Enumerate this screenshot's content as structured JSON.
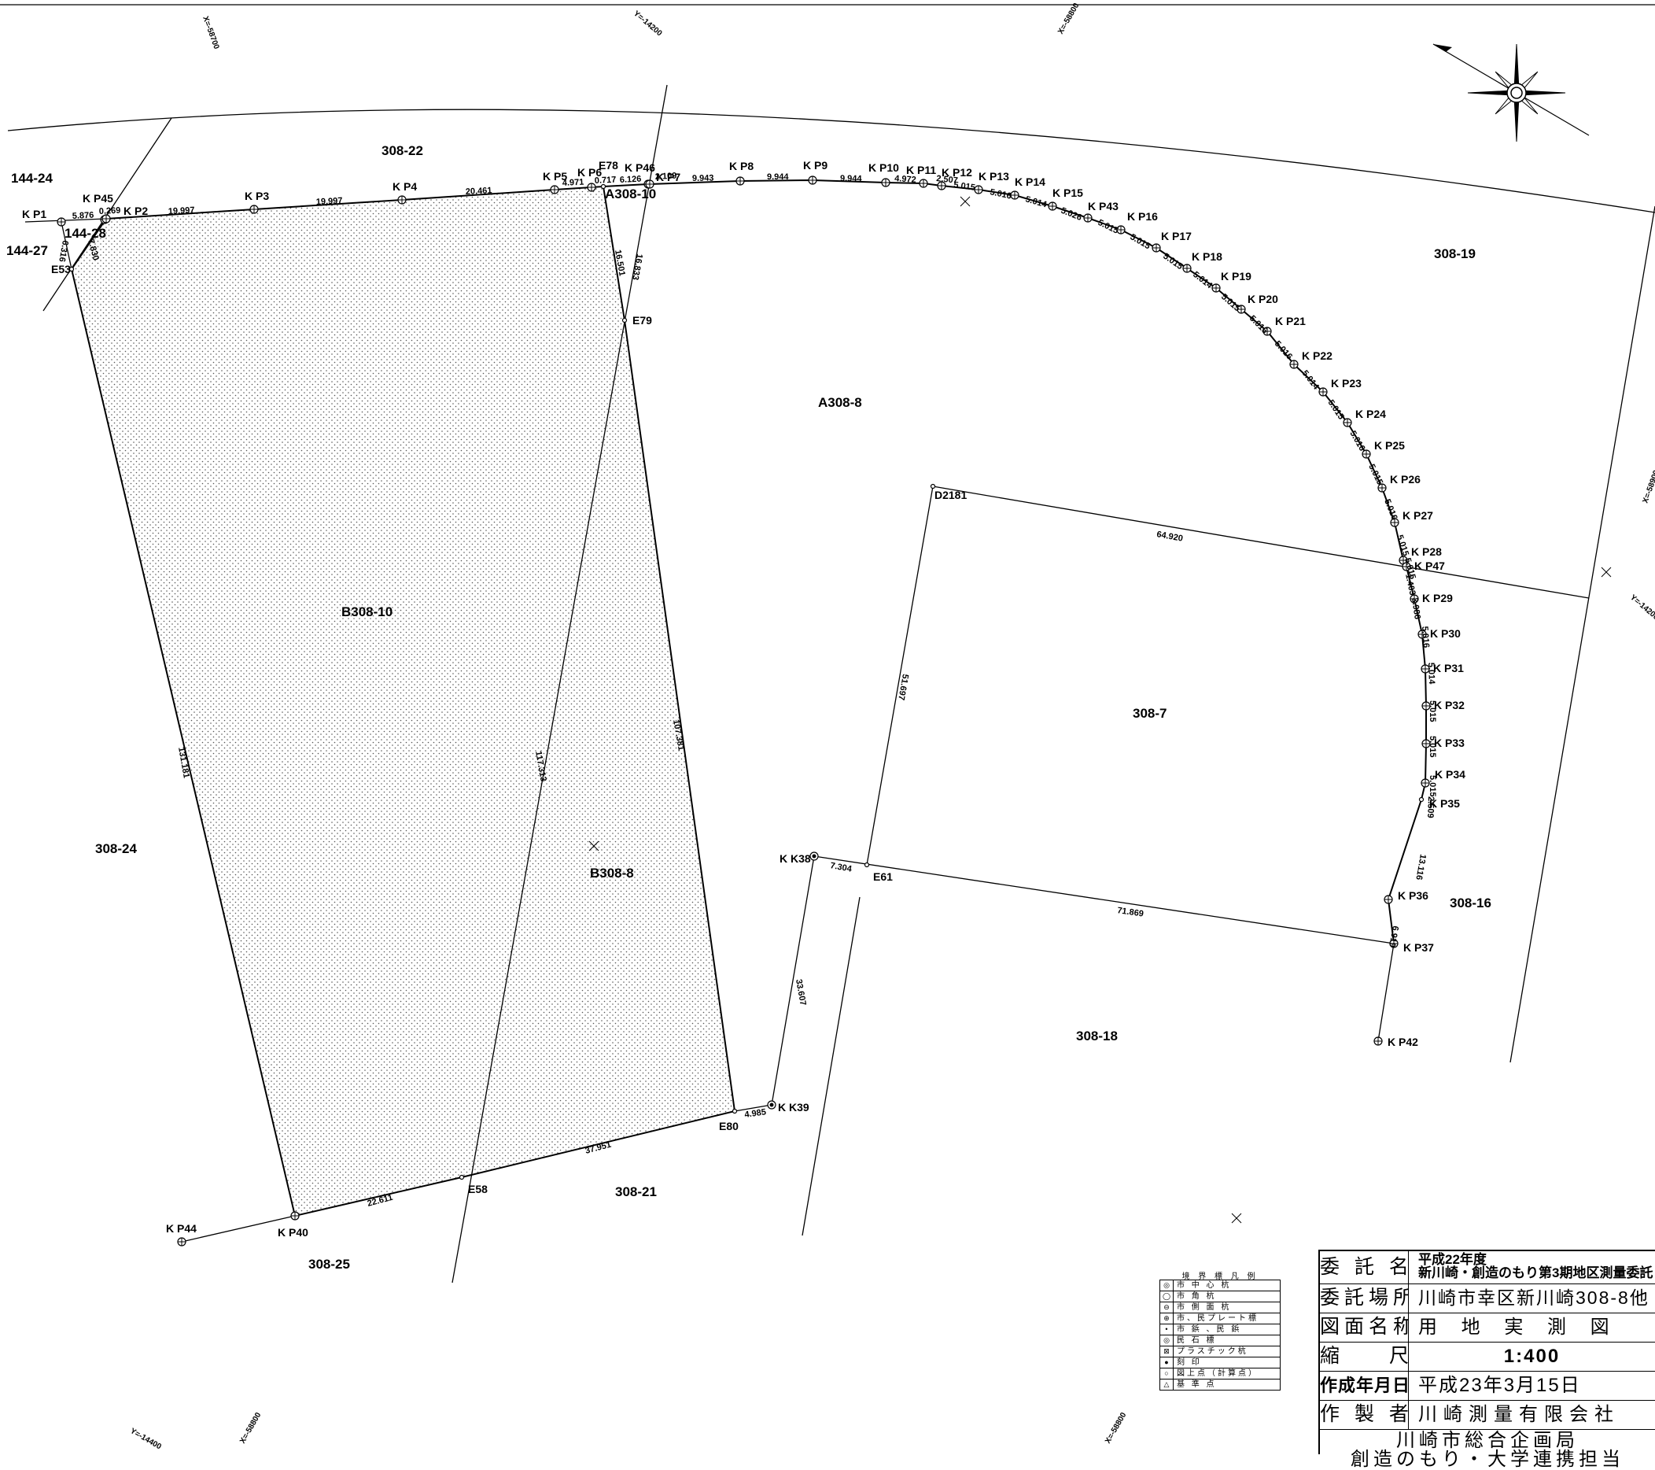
{
  "parcels": [
    {
      "id": "308-22",
      "label": "308-22"
    },
    {
      "id": "144-24",
      "label": "144-24"
    },
    {
      "id": "144-27",
      "label": "144-27"
    },
    {
      "id": "144-28",
      "label": "144-28"
    },
    {
      "id": "A308-10",
      "label": "A308-10"
    },
    {
      "id": "A308-8",
      "label": "A308-8"
    },
    {
      "id": "308-19",
      "label": "308-19"
    },
    {
      "id": "B308-10",
      "label": "B308-10"
    },
    {
      "id": "308-24",
      "label": "308-24"
    },
    {
      "id": "B308-8",
      "label": "B308-8"
    },
    {
      "id": "308-7",
      "label": "308-7"
    },
    {
      "id": "308-16",
      "label": "308-16"
    },
    {
      "id": "308-18",
      "label": "308-18"
    },
    {
      "id": "308-21",
      "label": "308-21"
    },
    {
      "id": "308-25",
      "label": "308-25"
    }
  ],
  "points": [
    {
      "id": "KP1",
      "label": "K P1",
      "marker": "cross"
    },
    {
      "id": "KP45",
      "label": "K P45",
      "marker": "cross"
    },
    {
      "id": "KP2",
      "label": "K P2",
      "marker": "cross"
    },
    {
      "id": "KP3",
      "label": "K P3",
      "marker": "cross"
    },
    {
      "id": "KP4",
      "label": "K P4",
      "marker": "cross"
    },
    {
      "id": "KP5",
      "label": "K P5",
      "marker": "cross"
    },
    {
      "id": "KP6",
      "label": "K P6",
      "marker": "cross"
    },
    {
      "id": "E78",
      "label": "E78",
      "marker": "dot"
    },
    {
      "id": "KP46",
      "label": "K P46",
      "marker": "cross"
    },
    {
      "id": "KP7",
      "label": "K P7",
      "marker": "cross"
    },
    {
      "id": "KP8",
      "label": "K P8",
      "marker": "cross"
    },
    {
      "id": "KP9",
      "label": "K P9",
      "marker": "cross"
    },
    {
      "id": "KP10",
      "label": "K P10",
      "marker": "cross"
    },
    {
      "id": "KP11",
      "label": "K P11",
      "marker": "cross"
    },
    {
      "id": "KP12",
      "label": "K P12",
      "marker": "cross"
    },
    {
      "id": "KP13",
      "label": "K P13",
      "marker": "cross"
    },
    {
      "id": "KP14",
      "label": "K P14",
      "marker": "cross"
    },
    {
      "id": "KP15",
      "label": "K P15",
      "marker": "cross"
    },
    {
      "id": "KP43",
      "label": "K P43",
      "marker": "cross"
    },
    {
      "id": "KP16",
      "label": "K P16",
      "marker": "cross"
    },
    {
      "id": "KP17",
      "label": "K P17",
      "marker": "cross"
    },
    {
      "id": "KP18",
      "label": "K P18",
      "marker": "cross"
    },
    {
      "id": "KP19",
      "label": "K P19",
      "marker": "cross"
    },
    {
      "id": "KP20",
      "label": "K P20",
      "marker": "cross"
    },
    {
      "id": "KP21",
      "label": "K P21",
      "marker": "cross"
    },
    {
      "id": "KP22",
      "label": "K P22",
      "marker": "cross"
    },
    {
      "id": "KP23",
      "label": "K P23",
      "marker": "cross"
    },
    {
      "id": "KP24",
      "label": "K P24",
      "marker": "cross"
    },
    {
      "id": "KP25",
      "label": "K P25",
      "marker": "cross"
    },
    {
      "id": "KP26",
      "label": "K P26",
      "marker": "cross"
    },
    {
      "id": "KP27",
      "label": "K P27",
      "marker": "cross"
    },
    {
      "id": "KP28",
      "label": "K P28",
      "marker": "cross"
    },
    {
      "id": "KP47",
      "label": "K P47",
      "marker": "cross"
    },
    {
      "id": "KP29",
      "label": "K P29",
      "marker": "cross"
    },
    {
      "id": "KP30",
      "label": "K P30",
      "marker": "cross"
    },
    {
      "id": "KP31",
      "label": "K P31",
      "marker": "cross"
    },
    {
      "id": "KP32",
      "label": "K P32",
      "marker": "cross"
    },
    {
      "id": "KP33",
      "label": "K P33",
      "marker": "cross"
    },
    {
      "id": "KP34",
      "label": "K P34",
      "marker": "cross"
    },
    {
      "id": "KP35",
      "label": "K P35",
      "marker": "dot"
    },
    {
      "id": "KP36",
      "label": "K P36",
      "marker": "cross"
    },
    {
      "id": "KP37",
      "label": "K P37",
      "marker": "cross"
    },
    {
      "id": "KP42",
      "label": "K P42",
      "marker": "cross"
    },
    {
      "id": "E53",
      "label": "E53",
      "marker": "dot"
    },
    {
      "id": "E79",
      "label": "E79",
      "marker": "dot"
    },
    {
      "id": "D2181",
      "label": "D2181",
      "marker": "dot"
    },
    {
      "id": "KK38",
      "label": "K K38",
      "marker": "double"
    },
    {
      "id": "E61",
      "label": "E61",
      "marker": "dot"
    },
    {
      "id": "E80",
      "label": "E80",
      "marker": "dot"
    },
    {
      "id": "KK39",
      "label": "K K39",
      "marker": "double"
    },
    {
      "id": "E58",
      "label": "E58",
      "marker": "dot"
    },
    {
      "id": "KP40",
      "label": "K P40",
      "marker": "cross"
    },
    {
      "id": "KP44",
      "label": "K P44",
      "marker": "cross"
    }
  ],
  "distances": [
    "5.876",
    "0.269",
    "19.997",
    "19.997",
    "20.461",
    "4.971",
    "0.717",
    "6.126",
    "2.109",
    "9.943",
    "9.944",
    "9.944",
    "4.972",
    "2.507",
    "5.015",
    "5.016",
    "5.014",
    "5.026",
    "5.015",
    "5.015",
    "5.015",
    "5.014",
    "5.015",
    "5.016",
    "5.016",
    "5.014",
    "5.015",
    "5.016",
    "5.015",
    "5.016",
    "5.015",
    "5.015",
    "1.403",
    "3.986",
    "5.016",
    "5.014",
    "5.015",
    "5.015",
    "5.015",
    "2.509",
    "13.116",
    "6.919",
    "6.316",
    "7.830",
    "16.501",
    "16.833",
    "64.920",
    "51.697",
    "7.304",
    "71.869",
    "107.381",
    "117.313",
    "131.181",
    "33.607",
    "4.985",
    "37.951",
    "22.611"
  ],
  "coordinate_ticks": [
    "X=-58700",
    "Y=-14200",
    "X=-58800",
    "X=-58900",
    "Y=-14200",
    "Y=-14400",
    "X=-58800",
    "X=-58800"
  ],
  "legend": {
    "title": "境 界 標 凡 例",
    "items": [
      {
        "symbol": "◎",
        "text": "市 中 心 杭"
      },
      {
        "symbol": "◯",
        "text": "市 角 杭"
      },
      {
        "symbol": "⊖",
        "text": "市 側 面 杭"
      },
      {
        "symbol": "⊕",
        "text": "市、民プレート標"
      },
      {
        "symbol": "•",
        "text": "市 鋲 、民 鋲"
      },
      {
        "symbol": "◎",
        "text": "民 石 標"
      },
      {
        "symbol": "⊠",
        "text": "プラスチック杭"
      },
      {
        "symbol": "●",
        "text": "刻 印"
      },
      {
        "symbol": "○",
        "text": "図上点（計算点）"
      },
      {
        "symbol": "△",
        "text": "基 準 点"
      }
    ]
  },
  "title_block": {
    "commission_key": "委 託 名",
    "commission_line1": "平成22年度",
    "commission_line2": "新川崎・創造のもり第3期地区測量委託",
    "location_key": "委託場所",
    "location_value": "川崎市幸区新川崎308-8他",
    "drawing_key": "図面名称",
    "drawing_value": "用 地 実 測 図",
    "scale_key": "縮 尺",
    "scale_value": "1:400",
    "date_key": "作成年月日",
    "date_value": "平成23年3月15日",
    "author_key": "作 製 者",
    "author_value": "川崎測量有限会社",
    "client_line1": "川崎市総合企画局",
    "client_line2": "創造のもり・大学連携担当"
  },
  "north_arrow": "north-arrow-icon"
}
